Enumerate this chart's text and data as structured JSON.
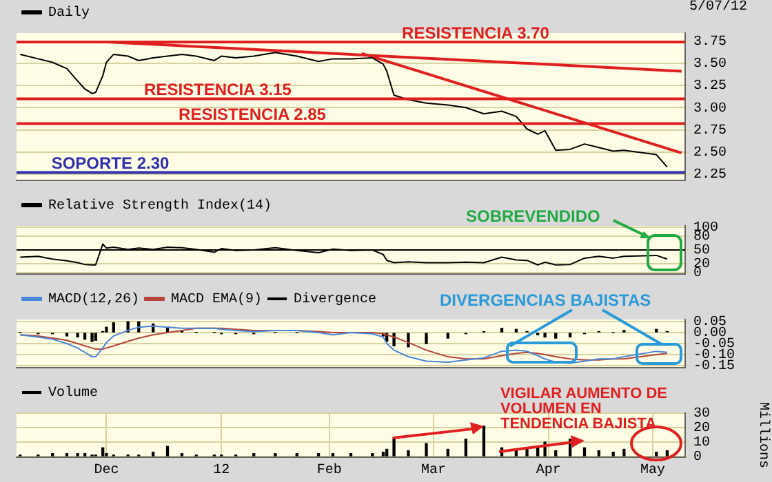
{
  "chart_data": [
    {
      "type": "line",
      "x": [
        "2011-11-07",
        "2011-11-12",
        "2011-11-16",
        "2011-11-20",
        "2011-11-23",
        "2011-11-25",
        "2011-11-27",
        "2011-11-28",
        "2011-11-30",
        "2011-12-01",
        "2011-12-03",
        "2011-12-07",
        "2011-12-10",
        "2011-12-14",
        "2011-12-18",
        "2011-12-22",
        "2011-12-26",
        "2011-12-31",
        "2012-01-02",
        "2012-01-06",
        "2012-01-11",
        "2012-01-17",
        "2012-01-23",
        "2012-01-29",
        "2012-02-02",
        "2012-02-07",
        "2012-02-13",
        "2012-02-16",
        "2012-02-17",
        "2012-02-19",
        "2012-02-23",
        "2012-02-28",
        "2012-03-05",
        "2012-03-10",
        "2012-03-15",
        "2012-03-20",
        "2012-03-24",
        "2012-03-27",
        "2012-03-30",
        "2012-04-01",
        "2012-04-04",
        "2012-04-08",
        "2012-04-12",
        "2012-04-16",
        "2012-04-20",
        "2012-04-23",
        "2012-05-02",
        "2012-05-05"
      ],
      "series": [
        {
          "name": "Daily",
          "color": "#000000",
          "values": [
            3.6,
            3.55,
            3.51,
            3.44,
            3.3,
            3.21,
            3.16,
            3.17,
            3.36,
            3.51,
            3.6,
            3.58,
            3.53,
            3.56,
            3.58,
            3.6,
            3.58,
            3.53,
            3.58,
            3.56,
            3.58,
            3.62,
            3.58,
            3.52,
            3.55,
            3.55,
            3.56,
            3.49,
            3.41,
            3.14,
            3.09,
            3.05,
            3.03,
            3.0,
            2.93,
            2.96,
            2.9,
            2.76,
            2.7,
            2.74,
            2.52,
            2.53,
            2.59,
            2.55,
            2.51,
            2.52,
            2.47,
            2.33
          ]
        },
        {
          "type": "line",
          "color": "#e02020",
          "x": [
            "2011-12-01",
            "2012-05-09"
          ],
          "values": [
            3.74,
            3.41
          ]
        },
        {
          "type": "line",
          "color": "#e02020",
          "x": [
            "2012-02-10",
            "2012-05-09"
          ],
          "values": [
            3.61,
            2.49
          ]
        }
      ],
      "xlim": [
        "2011-11-06",
        "2012-05-10"
      ],
      "xticks": [
        {
          "value": "2011-12-01",
          "label": null
        },
        {
          "value": "2012-01-02",
          "label": null
        },
        {
          "value": "2012-02-01",
          "label": null
        },
        {
          "value": "2012-03-01",
          "label": null
        },
        {
          "value": "2012-04-02",
          "label": null
        },
        {
          "value": "2012-05-01",
          "label": null
        }
      ],
      "ylim": [
        2.18,
        3.84
      ],
      "yticks": [
        2.25,
        {
          "value": 2.5,
          "label": "2.50"
        },
        2.75,
        {
          "value": 3,
          "label": "3.00"
        },
        3.25,
        {
          "value": 3.5,
          "label": "3.50"
        },
        3.75
      ],
      "ref_lines": [
        {
          "axis": "y",
          "value": 3.74,
          "label": "RESISTENCIA 3.70",
          "color": "#e02020"
        },
        {
          "axis": "y",
          "value": 3.1,
          "label": "RESISTENCIA 3.15",
          "color": "#e02020"
        },
        {
          "axis": "y",
          "value": 2.82,
          "label": "RESISTENCIA 2.85",
          "color": "#e02020"
        },
        {
          "axis": "y",
          "value": 2.27,
          "label": "SOPORTE 2.30",
          "color": "#3030b0"
        }
      ],
      "annotations": [
        "5/07/12"
      ],
      "grid": true,
      "legend": "top left",
      "tick_labels": "y",
      "marker": "none"
    },
    {
      "type": "line",
      "x": [
        "2011-11-07",
        "2011-11-12",
        "2011-11-16",
        "2011-11-20",
        "2011-11-23",
        "2011-11-25",
        "2011-11-27",
        "2011-11-28",
        "2011-11-30",
        "2011-12-01",
        "2011-12-03",
        "2011-12-07",
        "2011-12-10",
        "2011-12-14",
        "2011-12-18",
        "2011-12-22",
        "2011-12-26",
        "2011-12-31",
        "2012-01-02",
        "2012-01-06",
        "2012-01-11",
        "2012-01-17",
        "2012-01-23",
        "2012-01-29",
        "2012-02-02",
        "2012-02-07",
        "2012-02-13",
        "2012-02-16",
        "2012-02-17",
        "2012-02-19",
        "2012-02-23",
        "2012-02-28",
        "2012-03-05",
        "2012-03-10",
        "2012-03-15",
        "2012-03-20",
        "2012-03-24",
        "2012-03-27",
        "2012-03-30",
        "2012-04-01",
        "2012-04-04",
        "2012-04-08",
        "2012-04-12",
        "2012-04-16",
        "2012-04-20",
        "2012-04-23",
        "2012-05-02",
        "2012-05-05"
      ],
      "series": [
        {
          "name": "Relative Strength Index(14)",
          "color": "#000000",
          "values": [
            34,
            36,
            30,
            26,
            22,
            18,
            17,
            17,
            63,
            54,
            56,
            51,
            54,
            51,
            56,
            55,
            51,
            45,
            53,
            49,
            50,
            55,
            49,
            44,
            52,
            49,
            50,
            40,
            27,
            22,
            24,
            22,
            22,
            23,
            22,
            34,
            28,
            27,
            17,
            23,
            17,
            18,
            32,
            36,
            32,
            36,
            38,
            30
          ]
        }
      ],
      "xlim": [
        "2011-11-06",
        "2012-05-10"
      ],
      "xticks": [
        {
          "value": "2011-12-01",
          "label": null
        },
        {
          "value": "2012-01-02",
          "label": null
        },
        {
          "value": "2012-02-01",
          "label": null
        },
        {
          "value": "2012-03-01",
          "label": null
        },
        {
          "value": "2012-04-02",
          "label": null
        },
        {
          "value": "2012-05-01",
          "label": null
        }
      ],
      "ylim": [
        -3,
        103
      ],
      "yticks": [
        0,
        20,
        50,
        80,
        100
      ],
      "ref_lines": [
        {
          "axis": "y",
          "value": 50,
          "color": "#000000"
        }
      ],
      "annotations": [
        "SOBREVENDIDO"
      ],
      "grid": true,
      "legend": "top left",
      "tick_labels": "y",
      "marker": "none"
    },
    {
      "type": "line",
      "x": [
        "2011-11-07",
        "2011-11-12",
        "2011-11-16",
        "2011-11-20",
        "2011-11-23",
        "2011-11-25",
        "2011-11-27",
        "2011-11-28",
        "2011-11-30",
        "2011-12-01",
        "2011-12-03",
        "2011-12-07",
        "2011-12-10",
        "2011-12-14",
        "2011-12-18",
        "2011-12-22",
        "2011-12-26",
        "2011-12-31",
        "2012-01-02",
        "2012-01-06",
        "2012-01-11",
        "2012-01-17",
        "2012-01-23",
        "2012-01-29",
        "2012-02-02",
        "2012-02-07",
        "2012-02-13",
        "2012-02-16",
        "2012-02-17",
        "2012-02-19",
        "2012-02-23",
        "2012-02-28",
        "2012-03-05",
        "2012-03-10",
        "2012-03-15",
        "2012-03-20",
        "2012-03-24",
        "2012-03-27",
        "2012-03-30",
        "2012-04-01",
        "2012-04-04",
        "2012-04-08",
        "2012-04-12",
        "2012-04-16",
        "2012-04-20",
        "2012-04-23",
        "2012-05-02",
        "2012-05-05"
      ],
      "series": [
        {
          "name": "MACD(12,26)",
          "color": "#4a86d8",
          "values": [
            -0.01,
            -0.02,
            -0.03,
            -0.05,
            -0.07,
            -0.09,
            -0.11,
            -0.11,
            -0.07,
            -0.045,
            -0.015,
            0.01,
            0.025,
            0.03,
            0.025,
            0.02,
            0.02,
            0.02,
            0.015,
            0.01,
            0.005,
            0.01,
            0.01,
            0,
            -0.01,
            0,
            -0.005,
            -0.02,
            -0.05,
            -0.08,
            -0.11,
            -0.13,
            -0.135,
            -0.125,
            -0.115,
            -0.085,
            -0.08,
            -0.085,
            -0.105,
            -0.12,
            -0.135,
            -0.14,
            -0.13,
            -0.12,
            -0.12,
            -0.11,
            -0.085,
            -0.09
          ]
        },
        {
          "name": "MACD EMA(9)",
          "color": "#b5453a",
          "values": [
            -0.01,
            -0.015,
            -0.025,
            -0.035,
            -0.05,
            -0.06,
            -0.07,
            -0.075,
            -0.075,
            -0.07,
            -0.06,
            -0.04,
            -0.025,
            -0.01,
            0,
            0.01,
            0.02,
            0.02,
            0.02,
            0.015,
            0.01,
            0.01,
            0.01,
            0.005,
            0,
            0,
            0,
            -0.005,
            -0.01,
            -0.02,
            -0.045,
            -0.08,
            -0.11,
            -0.12,
            -0.12,
            -0.105,
            -0.095,
            -0.09,
            -0.095,
            -0.1,
            -0.11,
            -0.12,
            -0.125,
            -0.125,
            -0.12,
            -0.12,
            -0.1,
            -0.095
          ]
        },
        {
          "name": "Divergence",
          "type": "bar",
          "color": "#000000",
          "values": [
            0,
            -0.005,
            -0.005,
            -0.015,
            -0.02,
            -0.03,
            -0.04,
            -0.035,
            0.005,
            0.025,
            0.045,
            0.05,
            0.05,
            0.04,
            0.025,
            0.01,
            0,
            0,
            -0.005,
            -0.005,
            -0.005,
            0,
            0,
            null,
            null,
            0,
            null,
            -0.015,
            -0.04,
            -0.06,
            -0.065,
            -0.05,
            -0.025,
            -0.005,
            0.005,
            0.02,
            0.015,
            0.005,
            -0.01,
            -0.02,
            -0.025,
            -0.02,
            -0.005,
            0.005,
            0,
            0.01,
            0.015,
            0.005
          ]
        }
      ],
      "xlim": [
        "2011-11-06",
        "2012-05-10"
      ],
      "xticks": [
        {
          "value": "2011-12-01",
          "label": null
        },
        {
          "value": "2012-01-02",
          "label": null
        },
        {
          "value": "2012-02-01",
          "label": null
        },
        {
          "value": "2012-03-01",
          "label": null
        },
        {
          "value": "2012-04-02",
          "label": null
        },
        {
          "value": "2012-05-01",
          "label": null
        }
      ],
      "ylim": [
        -0.16,
        0.06
      ],
      "yticks": [
        0.05,
        {
          "value": 0,
          "label": "0.00"
        },
        -0.05,
        {
          "value": -0.1,
          "label": "-0.10"
        },
        -0.15
      ],
      "annotations": [
        {
          "text": "DIVERGENCIAS BAJISTAS",
          "x": "2012-03-20",
          "y": -0.08
        }
      ],
      "grid": true,
      "legend": "top left",
      "tick_labels": "y",
      "marker": "none"
    },
    {
      "type": "bar",
      "x": [
        "2011-11-07",
        "2011-11-12",
        "2011-11-16",
        "2011-11-20",
        "2011-11-23",
        "2011-11-25",
        "2011-11-27",
        "2011-11-28",
        "2011-11-30",
        "2011-12-01",
        "2011-12-03",
        "2011-12-07",
        "2011-12-10",
        "2011-12-14",
        "2011-12-18",
        "2011-12-22",
        "2011-12-26",
        "2011-12-31",
        "2012-01-02",
        "2012-01-06",
        "2012-01-11",
        "2012-01-17",
        "2012-01-23",
        "2012-01-29",
        "2012-02-02",
        "2012-02-07",
        "2012-02-13",
        "2012-02-16",
        "2012-02-17",
        "2012-02-19",
        "2012-02-23",
        "2012-02-28",
        "2012-03-05",
        "2012-03-10",
        "2012-03-15",
        "2012-03-20",
        "2012-03-24",
        "2012-03-27",
        "2012-03-30",
        "2012-04-01",
        "2012-04-04",
        "2012-04-08",
        "2012-04-12",
        "2012-04-16",
        "2012-04-20",
        "2012-04-23",
        "2012-05-02",
        "2012-05-05"
      ],
      "series": [
        {
          "name": "Volume",
          "color": "#000000",
          "values": [
            1,
            1,
            2,
            2,
            2,
            2,
            1,
            1,
            6,
            2,
            1,
            1,
            1,
            3,
            7,
            2,
            1,
            1,
            1,
            1,
            2,
            2,
            2,
            2,
            2,
            2,
            2,
            3,
            5,
            13,
            4,
            9,
            5,
            12,
            21,
            6,
            4,
            5,
            6,
            10,
            4,
            12,
            6,
            4,
            3,
            5,
            3,
            4
          ]
        }
      ],
      "xlim": [
        "2011-11-06",
        "2012-05-10"
      ],
      "xticks": [
        {
          "value": "2011-12-01",
          "label": "Dec"
        },
        {
          "value": "2012-01-02",
          "label": "12"
        },
        {
          "value": "2012-02-01",
          "label": "Feb"
        },
        {
          "value": "2012-03-01",
          "label": "Mar"
        },
        {
          "value": "2012-04-02",
          "label": "Apr"
        },
        {
          "value": "2012-05-01",
          "label": "May"
        }
      ],
      "ylim": [
        -0.5,
        30
      ],
      "yticks": [
        0,
        10,
        20,
        30
      ],
      "ylabel": "Millions",
      "annotations": [
        {
          "text": "VIGILAR AUMENTO DE VOLUMEN EN TENDENCIA BAJISTA",
          "x": "2012-03-15",
          "y": 21
        }
      ],
      "grid": true,
      "legend": "top left"
    }
  ]
}
